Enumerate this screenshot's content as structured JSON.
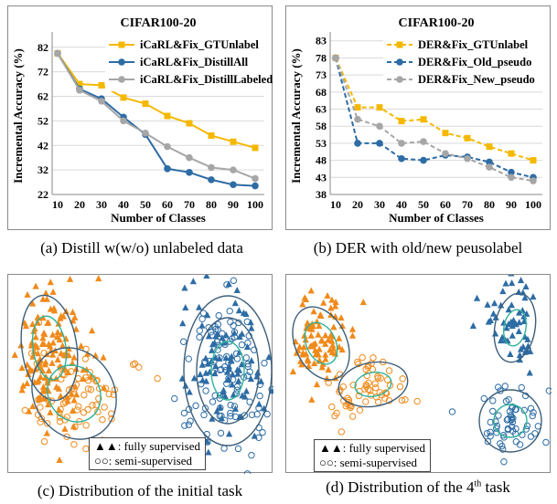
{
  "chart_data": [
    {
      "type": "line",
      "title": "CIFAR100-20",
      "xlabel": "Number of Classes",
      "ylabel": "Incremental Accuracy (%)",
      "categories": [
        10,
        20,
        30,
        40,
        50,
        60,
        70,
        80,
        90,
        100
      ],
      "yticks": [
        22,
        32,
        42,
        52,
        62,
        72,
        82
      ],
      "ylim": [
        22,
        86
      ],
      "legend_placement": "top-right",
      "series": [
        {
          "name": "iCaRL&Fix_GTUnlabel",
          "color": "#f5b800",
          "marker": "square",
          "dash": false,
          "values": [
            79.5,
            67,
            66.5,
            61.5,
            59,
            54,
            51,
            46,
            43.5,
            41
          ]
        },
        {
          "name": "iCaRL&Fix_DistillAll",
          "color": "#2d6ca5",
          "marker": "circle",
          "dash": false,
          "values": [
            79.5,
            65,
            61,
            53.5,
            46.5,
            32.5,
            31,
            28,
            26,
            25.5
          ]
        },
        {
          "name": "iCaRL&Fix_DistillLabeled",
          "color": "#a6a6a6",
          "marker": "circle",
          "dash": false,
          "values": [
            79.5,
            64.5,
            60,
            52,
            47,
            41.5,
            37,
            33,
            32,
            28.5
          ]
        }
      ]
    },
    {
      "type": "line",
      "title": "CIFAR100-20",
      "xlabel": "Number of Classes",
      "ylabel": "Incremental Accuracy (%)",
      "categories": [
        10,
        20,
        30,
        40,
        50,
        60,
        70,
        80,
        90,
        100
      ],
      "yticks": [
        38,
        43,
        48,
        53,
        58,
        63,
        68,
        73,
        78,
        83
      ],
      "ylim": [
        38,
        84
      ],
      "legend_placement": "top-right",
      "series": [
        {
          "name": "DER&Fix_GTUnlabel",
          "color": "#f5b800",
          "marker": "square",
          "dash": true,
          "values": [
            78,
            63.5,
            63.5,
            59.5,
            60,
            56,
            54.5,
            52,
            50,
            48
          ]
        },
        {
          "name": "DER&Fix_Old_pseudo",
          "color": "#2d6ca5",
          "marker": "circle",
          "dash": true,
          "values": [
            78,
            53,
            53,
            48.5,
            48,
            49.5,
            49,
            47.5,
            44.5,
            43
          ]
        },
        {
          "name": "DER&Fix_New_pseudo",
          "color": "#a6a6a6",
          "marker": "circle",
          "dash": true,
          "values": [
            78,
            60,
            58,
            53,
            53.5,
            50,
            48.5,
            46,
            43,
            42
          ]
        }
      ]
    },
    {
      "type": "scatter",
      "legend": {
        "fully": "▲▲: fully supervised",
        "semi": "○○: semi-supervised"
      }
    },
    {
      "type": "scatter",
      "legend": {
        "fully": "▲▲: fully supervised",
        "semi": "○○: semi-supervised"
      }
    }
  ],
  "captions": {
    "a": "(a) Distill w(w/o) unlabeled data",
    "b": "(b) DER with old/new peusolabel",
    "c": "(c) Distribution of the initial task",
    "d_pre": "(d) Distribution of the 4",
    "d_sup": "th",
    "d_post": " task"
  },
  "colors": {
    "orange": "#f08a1a",
    "blue": "#2d6ca5",
    "green": "#2fb39a",
    "ellipse": "#3d5f7a"
  }
}
